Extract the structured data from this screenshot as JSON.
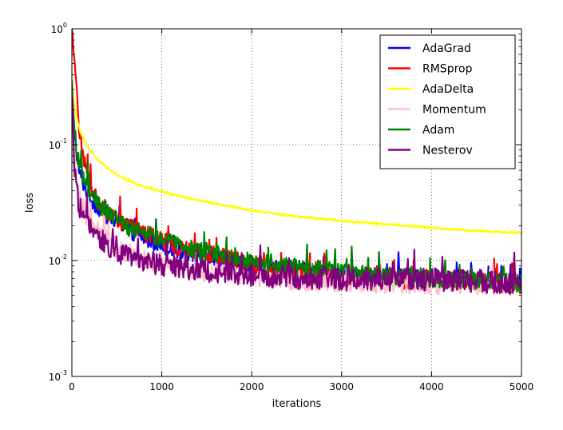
{
  "chart_data": {
    "type": "line",
    "xlabel": "iterations",
    "ylabel": "loss",
    "xlim": [
      0,
      5000
    ],
    "ylim": [
      0.001,
      1
    ],
    "yscale": "log",
    "grid": true,
    "legend_position": "top-right",
    "x_ticks": [
      {
        "value": 0,
        "label": "0"
      },
      {
        "value": 1000,
        "label": "1000"
      },
      {
        "value": 2000,
        "label": "2000"
      },
      {
        "value": 3000,
        "label": "3000"
      },
      {
        "value": 4000,
        "label": "4000"
      },
      {
        "value": 5000,
        "label": "5000"
      }
    ],
    "y_ticks": [
      {
        "value": 0.001,
        "base": "10",
        "exp": "-3"
      },
      {
        "value": 0.01,
        "base": "10",
        "exp": "-2"
      },
      {
        "value": 0.1,
        "base": "10",
        "exp": "-1"
      },
      {
        "value": 1,
        "base": "10",
        "exp": "0"
      }
    ],
    "series": [
      {
        "name": "AdaGrad",
        "color": "#0000ff",
        "noise": 0.07,
        "x": [
          0,
          20,
          60,
          100,
          150,
          200,
          300,
          400,
          500,
          600,
          800,
          1000,
          1200,
          1500,
          2000,
          2500,
          3000,
          3500,
          4000,
          4500,
          5000
        ],
        "y": [
          0.25,
          0.13,
          0.07,
          0.052,
          0.042,
          0.035,
          0.028,
          0.024,
          0.021,
          0.019,
          0.0155,
          0.0135,
          0.012,
          0.0108,
          0.0092,
          0.0083,
          0.0077,
          0.0073,
          0.007,
          0.0068,
          0.0065
        ]
      },
      {
        "name": "RMSprop",
        "color": "#ff0000",
        "noise": 0.08,
        "x": [
          0,
          20,
          50,
          80,
          120,
          160,
          200,
          300,
          400,
          500,
          600,
          800,
          1000,
          1200,
          1500,
          2000,
          2500,
          3000,
          3500,
          4000,
          4500,
          5000
        ],
        "y": [
          0.9,
          0.6,
          0.3,
          0.15,
          0.085,
          0.06,
          0.045,
          0.032,
          0.026,
          0.023,
          0.02,
          0.017,
          0.015,
          0.013,
          0.0115,
          0.0092,
          0.0078,
          0.0072,
          0.0068,
          0.0067,
          0.0065,
          0.0062
        ]
      },
      {
        "name": "AdaDelta",
        "color": "#ffff00",
        "noise": 0.008,
        "x": [
          0,
          10,
          30,
          60,
          100,
          150,
          200,
          300,
          400,
          500,
          700,
          1000,
          1500,
          2000,
          2500,
          3000,
          3500,
          4000,
          4500,
          5000
        ],
        "y": [
          0.36,
          0.3,
          0.22,
          0.16,
          0.125,
          0.105,
          0.09,
          0.073,
          0.062,
          0.055,
          0.046,
          0.039,
          0.032,
          0.027,
          0.024,
          0.022,
          0.0205,
          0.0192,
          0.018,
          0.0172
        ]
      },
      {
        "name": "Momentum",
        "color": "#ffc0cb",
        "noise": 0.09,
        "x": [
          0,
          15,
          40,
          80,
          120,
          200,
          300,
          400,
          500,
          700,
          1000,
          1300,
          1600,
          2000,
          2500,
          3000,
          3500,
          4000,
          4500,
          5000
        ],
        "y": [
          0.3,
          0.12,
          0.06,
          0.035,
          0.028,
          0.022,
          0.018,
          0.015,
          0.013,
          0.011,
          0.0095,
          0.0085,
          0.0078,
          0.0072,
          0.0068,
          0.0065,
          0.0064,
          0.0063,
          0.0063,
          0.0062
        ]
      },
      {
        "name": "Adam",
        "color": "#008000",
        "noise": 0.08,
        "x": [
          0,
          20,
          60,
          100,
          150,
          200,
          300,
          400,
          500,
          600,
          800,
          1000,
          1200,
          1500,
          2000,
          2500,
          3000,
          3500,
          4000,
          4500,
          5000
        ],
        "y": [
          0.3,
          0.15,
          0.085,
          0.06,
          0.048,
          0.04,
          0.031,
          0.026,
          0.023,
          0.02,
          0.017,
          0.015,
          0.0135,
          0.012,
          0.01,
          0.0088,
          0.008,
          0.0073,
          0.007,
          0.0067,
          0.0063
        ]
      },
      {
        "name": "Nesterov",
        "color": "#800080",
        "noise": 0.1,
        "x": [
          0,
          15,
          40,
          80,
          120,
          200,
          300,
          400,
          500,
          700,
          1000,
          1300,
          1600,
          2000,
          2500,
          3000,
          3500,
          4000,
          4500,
          5000
        ],
        "y": [
          0.3,
          0.1,
          0.05,
          0.03,
          0.024,
          0.019,
          0.016,
          0.0135,
          0.012,
          0.0105,
          0.0093,
          0.0085,
          0.008,
          0.0075,
          0.0071,
          0.0069,
          0.0068,
          0.0068,
          0.0067,
          0.0062
        ]
      }
    ]
  }
}
